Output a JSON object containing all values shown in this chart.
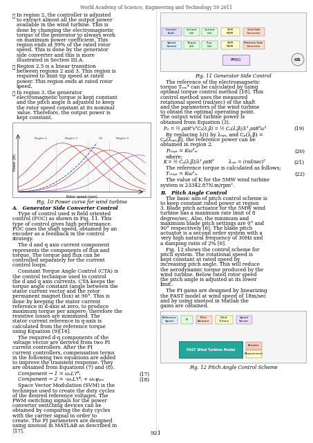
{
  "title": "World Academy of Science, Engineering and Technology 59 2011",
  "page_number": "921",
  "background_color": "#ffffff",
  "text_color": "#000000",
  "left_column": {
    "bullets": [
      "➤ In region 2, the controller is adjusted to extract almost all the output power available in the wind turbine. This is done by changing the electromagnetic torque of the generator to always work on maximum power coefficient. This region ends at 99% of the rated rotor speed. This is done by the generator side converter and this is more illustrated in Section III.A.",
      "➤ Region 2.5 is a linear transition between regions 2 and 3. This region is required to limit tip speed at rated power. This region ends at rated rotor speed.",
      "➤ In region 3, the generator electromagnetic torque is kept constant and the pitch angle is adjusted to keep the rotor speed constant at its nominal value. Therefore, the output power is kept constant."
    ],
    "fig10_caption": "Fig. 10 Power curve for wind turbine",
    "section_A_title": "A.   Generator Side Converter Control",
    "section_A_text": [
      "Type of control used is field oriented control (FOC) as shown in Fig. 11. This type of control gives high performance. FOC uses the shaft speed, obtained by an encoder as a feedback in the control strategy.",
      "The d and q axis current component represents the components of flux and torque. The torque and flux can be controlled separately for the current control loops.",
      "Constant Torque Angle Control (CTA) is the control technique used to control the d and q axis currents. CTA keeps the torque angle constant (angle between the stator current vector and the rotor permanent magnet flux) at 90°. This is done by keeping the stator current reference in d-axis at zero, to produce maximum torque per ampere; therefore the resistive losses are minimized. The stator current reference in q-axis is calculated from the reference torque using Equation (9)[16].",
      "The required d-q components of the voltage vector are derived from two PI current controllers. After the PI current controllers, compensation terms in the following two equations are added to improve the transient response. They are obtained from Equations (7) and (8)."
    ],
    "eq17": "Component → 1 = ωₛLⁱi*ᵢ",
    "eq17_num": "(17)",
    "eq18": "Component → 2 = -ωₛLⁱi*ᵢ + ωₛψₚₘ",
    "eq18_num": "(18)",
    "svm_text": "Space Vector Modulation (SVM) is the technique used to create the duty cycles of the desired reference voltages. The PWM switching signals for the power converter switching devices can be obtained by comparing the duty cycles with the carrier signal in order to create. The PI parameters are designed using sisotool in MATLAB as described in [17]."
  },
  "right_column": {
    "fig11_caption": "Fig. 11 Generator Side Control",
    "body_text": "The reference of the electromagnetic torque Tₑₘ* can be calculated by using optimal torque control method [18]. This control method uses the measured rotational speed (rad/sec) of the shaft and the parameters of the wind turbine to obtain the optimal operating point. The output wind turbine power is obtained from Equation (3).",
    "eq19_lhs": "Pₑₗ = ½ ρπR²v³Cₚ(λ,β) = ½ Cₚ(λ,β)/λ³ ρπR⁵ω³",
    "eq19_num": "(19)",
    "by_replacing": "By replacing λ(t) by λₒₚₜ, and Cₚ(λ,β) = Cₚ(λₒₚₜ,β), the reference power can be obtained in region 2.",
    "eq20": "Pₑₗₒₚₜ = Kω³ₘ",
    "eq20_num": "(20)",
    "where": "where;",
    "eq21": "K = ½ Cₚ(λ,β)/λ³ ρπR⁵          λₒₚₜ = (rad/sec)²",
    "eq21_num": "(21)",
    "ref_torque_text": "The reference torque is calculated as follows;",
    "eq22": "Tₑₗₒₚₜ = Kω²ₘ",
    "eq22_num": "(22)",
    "k_value": "The value of K for the 5MW wind turbine system is 23342.87N.m/rpm².",
    "section_B_title": "B.   Pitch Angle Control",
    "section_B_text": [
      "The basic aim of pitch control scheme is to keep constant rated power at region 3. Blade pitch actuator for the 5MW wind turbine has a maximum rate limit of 8 degree/sec. Also, the minimum and maximum blade pitch settings are 0° and 90° respectively [6]. The blade pitch actuator is a second order system with a very high natural frequency of 30Hz and a damping ratio of 2% [6].",
      "Fig. 12 shows the control scheme for pitch system. The rotational speed is kept constant at rated speed by increasing pitch angle. This will reduce the aerodynamic torque produced by the wind turbine. Below rated rotor speed the pitch angle is adjusted at its lower limit.",
      "The PI gains are designed by linearizing the FAST model at wind speed of 18m/sec and by using sisotool in Matlab the gains are obtained."
    ],
    "fig12_caption": "Fig. 12 Pitch Angle Control Scheme"
  }
}
